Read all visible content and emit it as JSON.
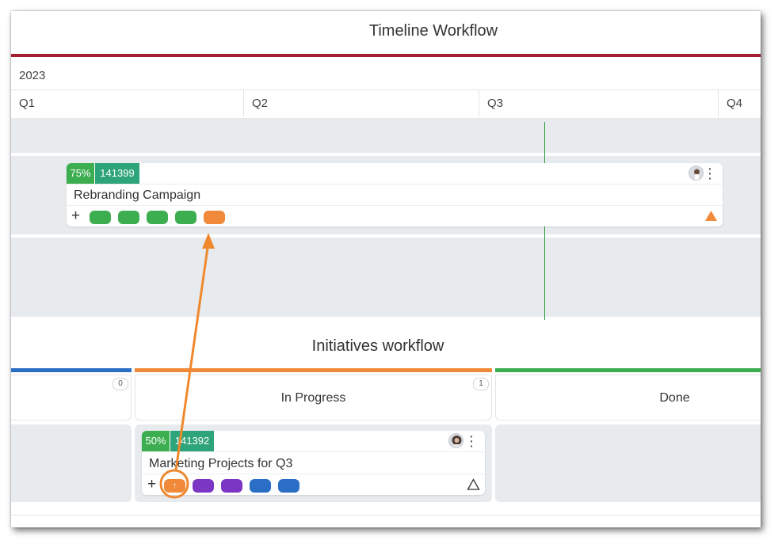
{
  "timeline": {
    "title": "Timeline Workflow",
    "year": "2023",
    "quarters": [
      "Q1",
      "Q2",
      "Q3",
      "Q4"
    ],
    "card": {
      "percent": "75%",
      "id": "141399",
      "name": "Rebranding Campaign",
      "plus": "+",
      "kebab": "⋮",
      "child_pills": [
        "green",
        "green",
        "green",
        "green",
        "orange"
      ],
      "warning_icon": "filled-orange-triangle-icon"
    }
  },
  "initiatives": {
    "title": "Initiatives workflow",
    "columns": [
      {
        "label": "",
        "count": "0",
        "color": "#2a6ec6"
      },
      {
        "label": "In Progress",
        "count": "1",
        "color": "#f0893a"
      },
      {
        "label": "Done",
        "count": "",
        "color": "#3cae50"
      }
    ],
    "card": {
      "percent": "50%",
      "id": "141392",
      "name": "Marketing Projects for Q3",
      "plus": "+",
      "kebab": "⋮",
      "arrow_glyph": "↑",
      "child_pills": [
        "orange",
        "purple",
        "purple",
        "blue",
        "blue"
      ],
      "warning_icon": "outline-triangle-icon"
    }
  },
  "colors": {
    "accent_maroon": "#a41c30",
    "green": "#3cae50",
    "teal": "#2ea47a",
    "orange": "#f0893a",
    "purple": "#7b36c4",
    "blue": "#2a6ec6",
    "annotation_orange": "#f0892e"
  }
}
